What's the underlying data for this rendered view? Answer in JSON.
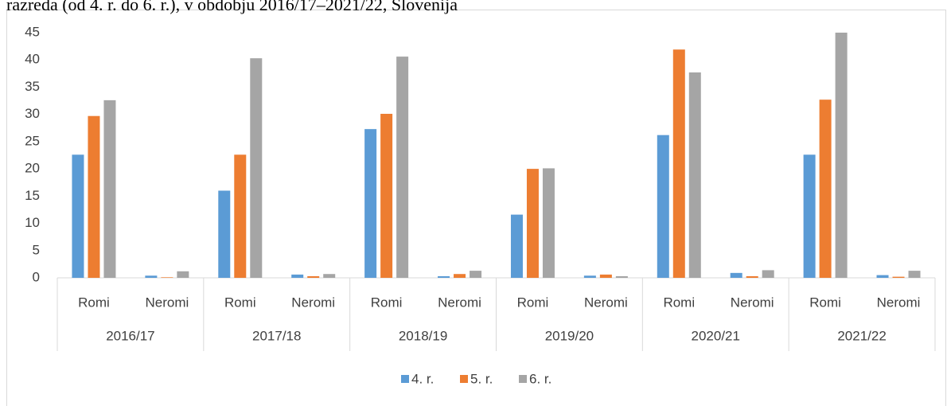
{
  "chart_data": {
    "type": "bar",
    "title": "razreda  (od 4. r. do 6. r.), v obdobju 2016/17–2021/22, Slovenija",
    "groups": [
      "2016/17",
      "2017/18",
      "2018/19",
      "2019/20",
      "2020/21",
      "2021/22"
    ],
    "categories": [
      "Romi",
      "Neromi",
      "Romi",
      "Neromi",
      "Romi",
      "Neromi",
      "Romi",
      "Neromi",
      "Romi",
      "Neromi",
      "Romi",
      "Neromi"
    ],
    "series": [
      {
        "name": "4. r.",
        "color": "#5b9bd5",
        "values": [
          22.6,
          0.4,
          16,
          0.6,
          27.3,
          0.3,
          11.6,
          0.4,
          26.2,
          0.9,
          22.6,
          0.5
        ]
      },
      {
        "name": "5. r.",
        "color": "#ed7d31",
        "values": [
          29.7,
          0.1,
          22.6,
          0.3,
          30.1,
          0.7,
          20,
          0.6,
          41.9,
          0.3,
          32.7,
          0.2
        ]
      },
      {
        "name": "6. r.",
        "color": "#a5a5a5",
        "values": [
          32.6,
          1.2,
          40.3,
          0.7,
          40.6,
          1.3,
          20.1,
          0.3,
          37.7,
          1.4,
          45,
          1.3
        ]
      }
    ],
    "ylim": [
      0,
      45
    ],
    "yticks": [
      0,
      5,
      10,
      15,
      20,
      25,
      30,
      35,
      40,
      45
    ],
    "grid": false,
    "legend": "bottom"
  }
}
